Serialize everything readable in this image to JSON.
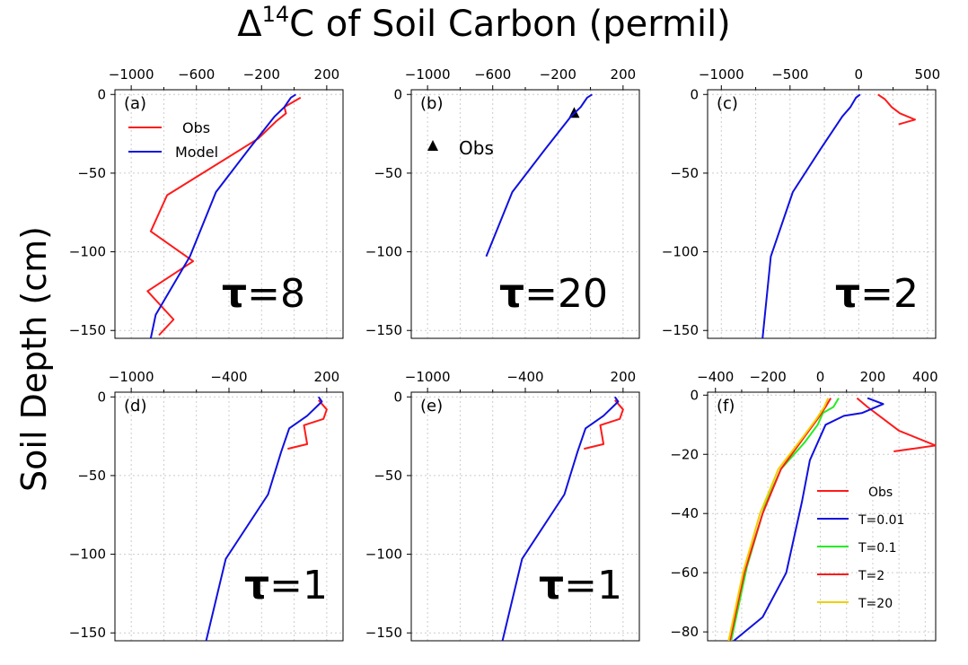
{
  "figure": {
    "title_prefix": "Δ",
    "title_sup": "14",
    "title_suffix": "C of Soil Carbon (permil)",
    "ylabel": "Soil Depth (cm)"
  },
  "colors": {
    "red": "#ff1a1a",
    "blue": "#1010e0",
    "green": "#22ee22",
    "yellow": "#f0d000",
    "grid": "#cccccc"
  },
  "chart_data": [
    {
      "panel": "(a)",
      "type": "line",
      "tau": "τ=8",
      "xlim": [
        -1100,
        300
      ],
      "ylim": [
        -155,
        3
      ],
      "xticks": [
        -1000,
        -600,
        -200,
        200
      ],
      "xminor": [
        -800,
        -400,
        0
      ],
      "yticks": [
        0,
        -50,
        -100,
        -150
      ],
      "legend": {
        "position": "top-left",
        "entries": [
          {
            "label": "Obs",
            "color": "red"
          },
          {
            "label": "Model",
            "color": "blue"
          }
        ]
      },
      "series": [
        {
          "name": "Obs",
          "color": "red",
          "x": [
            40,
            -60,
            -50,
            -110,
            -220,
            -780,
            -880,
            -620,
            -900,
            -740,
            -830
          ],
          "y": [
            -2,
            -8,
            -12,
            -17,
            -28,
            -64,
            -87,
            -106,
            -125,
            -143,
            -153
          ]
        },
        {
          "name": "Model",
          "color": "blue",
          "x": [
            10,
            -20,
            -40,
            -60,
            -120,
            -280,
            -480,
            -640,
            -850,
            -880
          ],
          "y": [
            0,
            -2,
            -5,
            -8,
            -14,
            -35,
            -62,
            -103,
            -140,
            -155
          ]
        }
      ]
    },
    {
      "panel": "(b)",
      "type": "line",
      "tau": "τ=20",
      "xlim": [
        -1100,
        300
      ],
      "ylim": [
        -155,
        3
      ],
      "xticks": [
        -1000,
        -600,
        -200,
        200
      ],
      "xminor": [
        -800,
        -400,
        0
      ],
      "yticks": [
        0,
        -50,
        -100,
        -150
      ],
      "legend": {
        "position": "top-left",
        "entries": [
          {
            "label": "Obs",
            "color": "black",
            "marker": "triangle"
          }
        ]
      },
      "series": [
        {
          "name": "Obs",
          "color": "black",
          "marker": "triangle",
          "x": [
            -100
          ],
          "y": [
            -12
          ]
        },
        {
          "name": "Model",
          "color": "blue",
          "x": [
            10,
            -20,
            -40,
            -60,
            -120,
            -280,
            -480,
            -640
          ],
          "y": [
            0,
            -2,
            -5,
            -8,
            -14,
            -35,
            -62,
            -103
          ]
        }
      ]
    },
    {
      "panel": "(c)",
      "type": "line",
      "tau": "τ=2",
      "xlim": [
        -1100,
        560
      ],
      "ylim": [
        -155,
        3
      ],
      "xticks": [
        -1000,
        -500,
        0,
        500
      ],
      "xminor": [
        -750,
        -250,
        250
      ],
      "yticks": [
        0,
        -50,
        -100,
        -150
      ],
      "series": [
        {
          "name": "Obs",
          "color": "red",
          "x": [
            140,
            190,
            240,
            300,
            410,
            290
          ],
          "y": [
            0,
            -3,
            -8,
            -12,
            -16,
            -19
          ]
        },
        {
          "name": "Model",
          "color": "blue",
          "x": [
            10,
            -20,
            -40,
            -60,
            -120,
            -280,
            -480,
            -640,
            -700
          ],
          "y": [
            0,
            -2,
            -5,
            -8,
            -14,
            -35,
            -62,
            -103,
            -155
          ]
        }
      ]
    },
    {
      "panel": "(d)",
      "type": "line",
      "tau": "τ=1",
      "xlim": [
        -1100,
        300
      ],
      "ylim": [
        -155,
        3
      ],
      "xticks": [
        -1000,
        -400,
        200
      ],
      "xminor": [
        -800,
        -600,
        -200,
        0
      ],
      "yticks": [
        0,
        -50,
        -100,
        -150
      ],
      "series": [
        {
          "name": "Obs",
          "color": "red",
          "x": [
            150,
            200,
            180,
            60,
            80,
            -40
          ],
          "y": [
            -2,
            -8,
            -14,
            -18,
            -30,
            -33
          ]
        },
        {
          "name": "Model",
          "color": "blue",
          "x": [
            150,
            170,
            80,
            -30,
            -80,
            -160,
            -420,
            -540
          ],
          "y": [
            0,
            -3,
            -12,
            -20,
            -35,
            -62,
            -103,
            -155
          ]
        }
      ]
    },
    {
      "panel": "(e)",
      "type": "line",
      "tau": "τ=1",
      "xlim": [
        -1100,
        300
      ],
      "ylim": [
        -155,
        3
      ],
      "xticks": [
        -1000,
        -400,
        200
      ],
      "xminor": [
        -800,
        -600,
        -200,
        0
      ],
      "yticks": [
        0,
        -50,
        -100,
        -150
      ],
      "series": [
        {
          "name": "Obs",
          "color": "red",
          "x": [
            150,
            200,
            180,
            60,
            80,
            -40
          ],
          "y": [
            -2,
            -8,
            -14,
            -18,
            -30,
            -33
          ]
        },
        {
          "name": "Model",
          "color": "blue",
          "x": [
            150,
            170,
            80,
            -30,
            -80,
            -160,
            -420,
            -540
          ],
          "y": [
            0,
            -3,
            -12,
            -20,
            -35,
            -62,
            -103,
            -155
          ]
        }
      ]
    },
    {
      "panel": "(f)",
      "type": "line",
      "xlim": [
        -430,
        440
      ],
      "ylim": [
        -83,
        1
      ],
      "xticks": [
        -400,
        -200,
        0,
        200,
        400
      ],
      "xminor": [
        -300,
        -100,
        100,
        300
      ],
      "yticks": [
        0,
        -20,
        -40,
        -60,
        -80
      ],
      "legend": {
        "position": "bottom-right",
        "entries": [
          {
            "label": "Obs",
            "color": "red"
          },
          {
            "label": "T=0.01",
            "color": "blue"
          },
          {
            "label": "T=0.1",
            "color": "green"
          },
          {
            "label": "T=2",
            "color": "red"
          },
          {
            "label": "T=20",
            "color": "yellow"
          }
        ]
      },
      "series": [
        {
          "name": "Obs",
          "color": "red",
          "x": [
            140,
            180,
            240,
            300,
            440,
            280
          ],
          "y": [
            -1,
            -4,
            -8,
            -12,
            -17,
            -19
          ]
        },
        {
          "name": "T=0.01",
          "color": "blue",
          "x": [
            180,
            240,
            160,
            90,
            20,
            -40,
            -70,
            -130,
            -220,
            -330
          ],
          "y": [
            -1,
            -3,
            -6,
            -7,
            -10,
            -22,
            -36,
            -60,
            -75,
            -83
          ]
        },
        {
          "name": "T=0.1",
          "color": "green",
          "x": [
            70,
            50,
            10,
            -10,
            -60,
            -150,
            -210,
            -280,
            -340
          ],
          "y": [
            -1,
            -4,
            -6,
            -10,
            -16,
            -25,
            -37,
            -58,
            -83
          ]
        },
        {
          "name": "T=2",
          "color": "red",
          "x": [
            40,
            20,
            -10,
            -60,
            -150,
            -220,
            -290,
            -345
          ],
          "y": [
            -1,
            -4,
            -8,
            -14,
            -25,
            -40,
            -60,
            -83
          ]
        },
        {
          "name": "T=20",
          "color": "yellow",
          "x": [
            30,
            15,
            -15,
            -65,
            -160,
            -230,
            -295,
            -350
          ],
          "y": [
            -1,
            -4,
            -8,
            -14,
            -25,
            -40,
            -60,
            -83
          ]
        }
      ]
    }
  ]
}
